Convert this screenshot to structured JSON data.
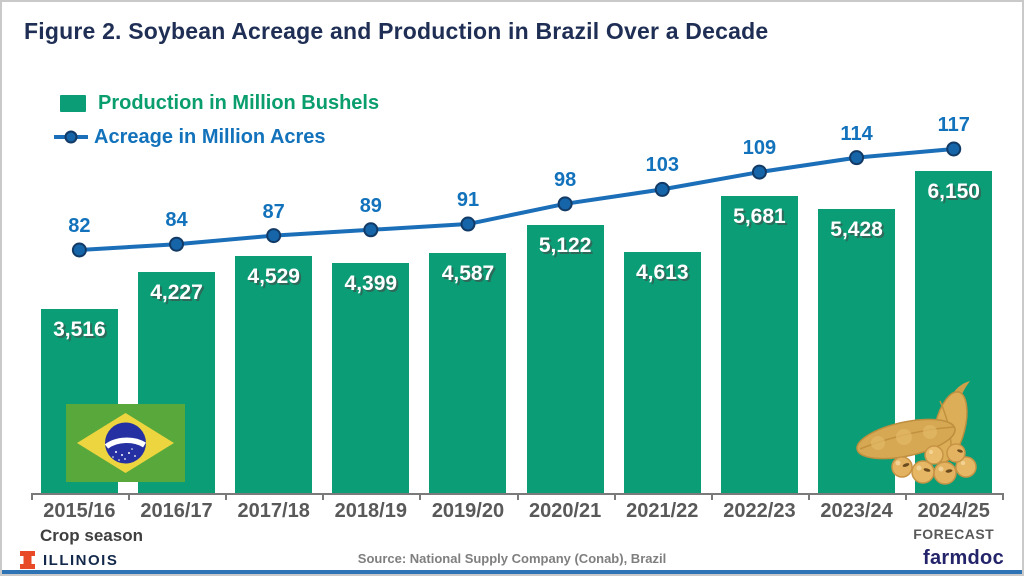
{
  "title": "Figure 2. Soybean Acreage and Production in Brazil Over a Decade",
  "legend": {
    "items": [
      {
        "label": "Production in Million Bushels",
        "type": "bar"
      },
      {
        "label": "Acreage in Million Acres",
        "type": "line"
      }
    ]
  },
  "chart_data": {
    "type": "bar+line combo",
    "categories": [
      "2015/16",
      "2016/17",
      "2017/18",
      "2018/19",
      "2019/20",
      "2020/21",
      "2021/22",
      "2022/23",
      "2023/24",
      "2024/25"
    ],
    "forecast_label": "FORECAST",
    "forecast_category_index": 9,
    "xlabel": "Crop season",
    "grid": false,
    "legend_position": "top-left",
    "series": [
      {
        "name": "Production in Million Bushels",
        "type": "bar",
        "values": [
          3516,
          4227,
          4529,
          4399,
          4587,
          5122,
          4613,
          5681,
          5428,
          6150
        ],
        "labels": [
          "3,516",
          "4,227",
          "4,529",
          "4,399",
          "4,587",
          "5,122",
          "4,613",
          "5,681",
          "5,428",
          "6,150"
        ]
      },
      {
        "name": "Acreage in Million Acres",
        "type": "line",
        "values": [
          82,
          84,
          87,
          89,
          91,
          98,
          103,
          109,
          114,
          117
        ]
      }
    ]
  },
  "footer": {
    "illinois_label": "ILLINOIS",
    "source": "Source: National Supply Company (Conab), Brazil",
    "farmdoc_label": "farmdoc"
  },
  "colors": {
    "bar_green": "#0a9d76",
    "legend_green_text": "#0a9d6e",
    "line_blue": "#1b6eb8",
    "marker_fill": "#1565a8",
    "marker_edge": "#123a66",
    "acre_label_blue": "#1272bb",
    "title_navy": "#1f2e54",
    "axis_gray": "#595959",
    "illinois_orange": "#e84a27",
    "bottom_bar_blue": "#2e74b5"
  }
}
